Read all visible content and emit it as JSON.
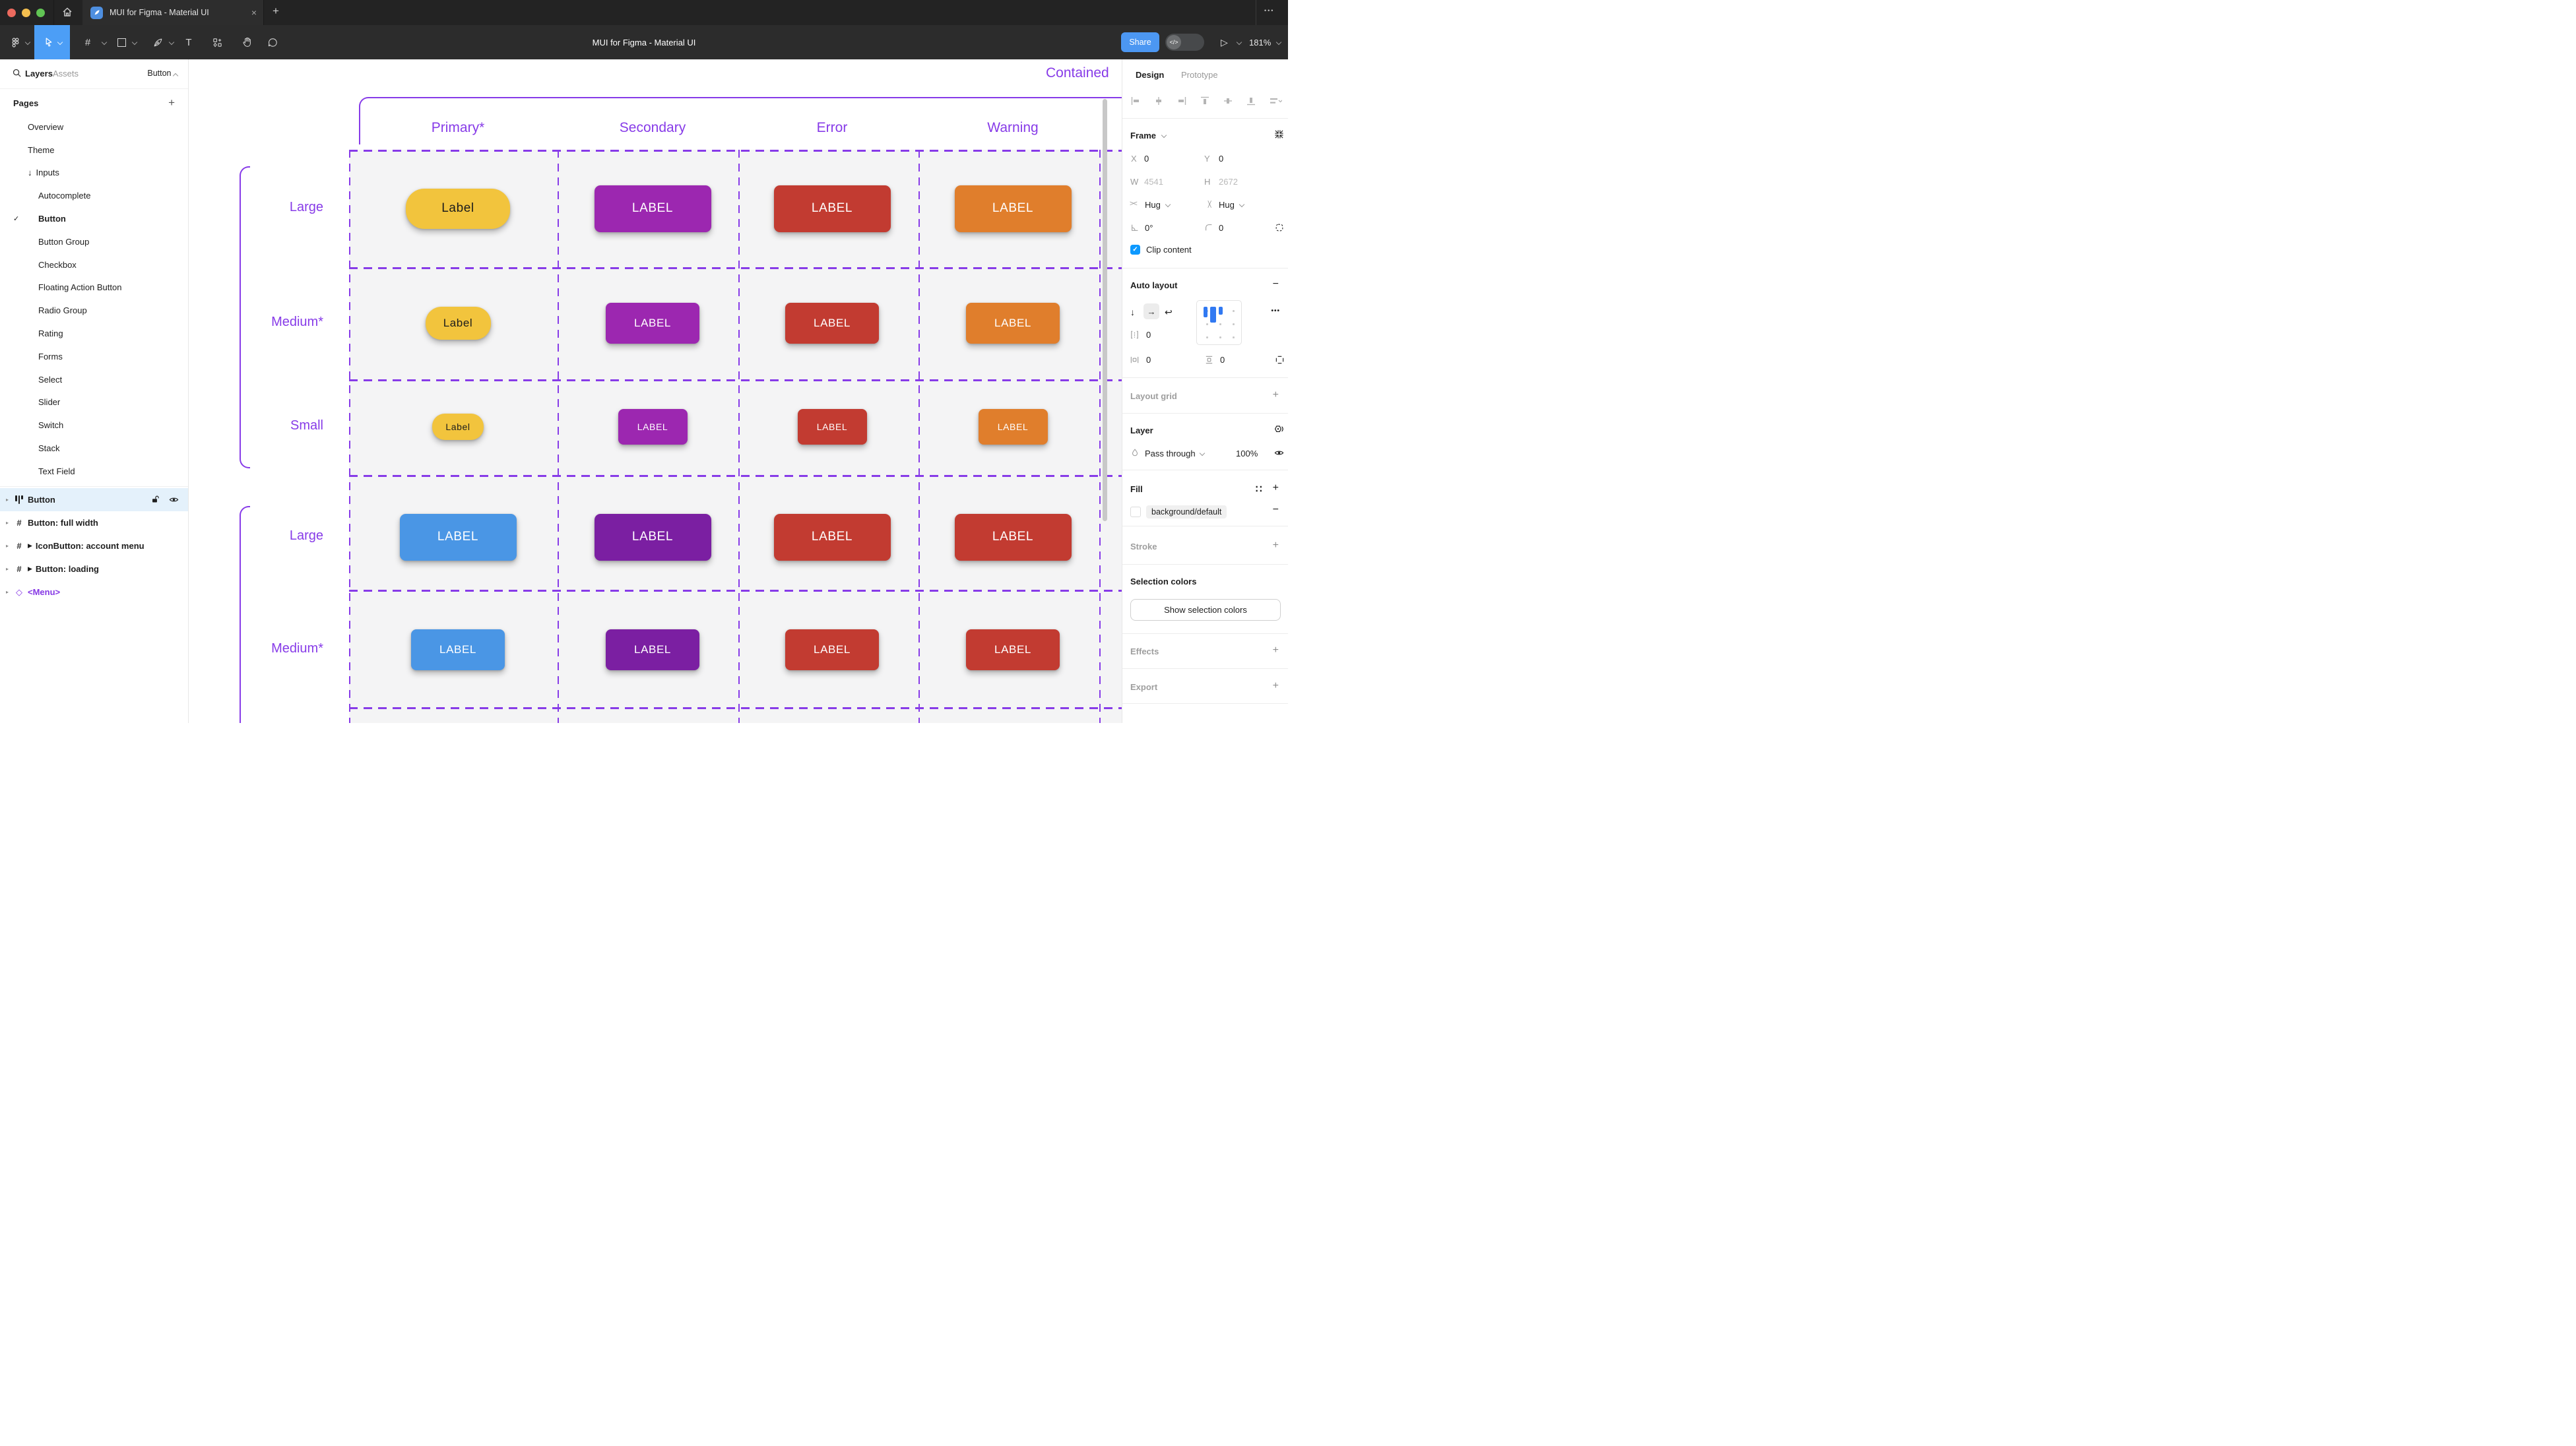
{
  "colors": {
    "figma_blue": "#4C9EF6",
    "grid_purple": "#873BE8",
    "checkbox_blue": "#0D99FF",
    "selected_row_bg": "#E4F1FB",
    "canvas_frame_bg": "#F4F4F5",
    "traffic_lights": [
      "#EC6A5E",
      "#F4BF4F",
      "#61C454"
    ]
  },
  "titlebar": {
    "tab_title": "MUI for Figma - Material UI",
    "close_label": "×",
    "new_tab_label": "+",
    "more_label": "•••"
  },
  "toolbar": {
    "document_title": "MUI for Figma - Material UI",
    "share_label": "Share",
    "dev_toggle_label": "</>",
    "present_label": "▷",
    "zoom_level": "181%",
    "frame_tool_glyph": "#",
    "text_tool_glyph": "T"
  },
  "sidebar": {
    "tab_layers": "Layers",
    "tab_assets": "Assets",
    "page_selector": "Button",
    "pages_header": "Pages",
    "add_page_label": "+",
    "pages": [
      {
        "label": "Overview",
        "indent": 0
      },
      {
        "label": "Theme",
        "indent": 0
      },
      {
        "label": "Inputs",
        "indent": 0,
        "arrow": "↓"
      },
      {
        "label": "Autocomplete",
        "indent": 1
      },
      {
        "label": "Button",
        "indent": 1,
        "checked": true,
        "active": true
      },
      {
        "label": "Button Group",
        "indent": 1
      },
      {
        "label": "Checkbox",
        "indent": 1
      },
      {
        "label": "Floating Action Button",
        "indent": 1
      },
      {
        "label": "Radio Group",
        "indent": 1
      },
      {
        "label": "Rating",
        "indent": 1
      },
      {
        "label": "Forms",
        "indent": 1
      },
      {
        "label": "Select",
        "indent": 1
      },
      {
        "label": "Slider",
        "indent": 1
      },
      {
        "label": "Switch",
        "indent": 1
      },
      {
        "label": "Stack",
        "indent": 1
      },
      {
        "label": "Text Field",
        "indent": 1
      }
    ],
    "layers": [
      {
        "label": "Button",
        "icon": "auto-layout",
        "selected": true
      },
      {
        "label": "Button: full width",
        "icon": "frame"
      },
      {
        "label": "IconButton: account menu",
        "icon": "frame",
        "play": true
      },
      {
        "label": "Button: loading",
        "icon": "frame",
        "play": true
      },
      {
        "label": "<Menu>",
        "icon": "component",
        "color": "#8638E5"
      }
    ]
  },
  "canvas": {
    "frame_title": "Contained",
    "columns": [
      "Primary*",
      "Secondary",
      "Error",
      "Warning"
    ],
    "rows": [
      {
        "label": "Large",
        "size": "lg",
        "buttons": [
          {
            "text": "Label",
            "bg": "#F2C43D",
            "fg": "#1C1C1C",
            "pill": true
          },
          {
            "text": "LABEL",
            "bg": "#9C27B0",
            "fg": "#FFFFFF"
          },
          {
            "text": "LABEL",
            "bg": "#C23B31",
            "fg": "#FFFFFF"
          },
          {
            "text": "LABEL",
            "bg": "#E07E2C",
            "fg": "#FFFFFF"
          }
        ]
      },
      {
        "label": "Medium*",
        "size": "md",
        "buttons": [
          {
            "text": "Label",
            "bg": "#F2C43D",
            "fg": "#1C1C1C",
            "pill": true
          },
          {
            "text": "LABEL",
            "bg": "#9C27B0",
            "fg": "#FFFFFF"
          },
          {
            "text": "LABEL",
            "bg": "#C23B31",
            "fg": "#FFFFFF"
          },
          {
            "text": "LABEL",
            "bg": "#E07E2C",
            "fg": "#FFFFFF"
          }
        ]
      },
      {
        "label": "Small",
        "size": "sm",
        "buttons": [
          {
            "text": "Label",
            "bg": "#F2C43D",
            "fg": "#1C1C1C",
            "pill": true
          },
          {
            "text": "LABEL",
            "bg": "#9C27B0",
            "fg": "#FFFFFF"
          },
          {
            "text": "LABEL",
            "bg": "#C23B31",
            "fg": "#FFFFFF"
          },
          {
            "text": "LABEL",
            "bg": "#E07E2C",
            "fg": "#FFFFFF"
          }
        ]
      },
      {
        "label": "Large",
        "size": "lg",
        "buttons": [
          {
            "text": "LABEL",
            "bg": "#4A96E5",
            "fg": "#FFFFFF"
          },
          {
            "text": "LABEL",
            "bg": "#7B1FA2",
            "fg": "#FFFFFF"
          },
          {
            "text": "LABEL",
            "bg": "#C23B31",
            "fg": "#FFFFFF"
          },
          {
            "text": "LABEL",
            "bg": "#C23B31",
            "fg": "#FFFFFF"
          }
        ]
      },
      {
        "label": "Medium*",
        "size": "md",
        "buttons": [
          {
            "text": "LABEL",
            "bg": "#4A96E5",
            "fg": "#FFFFFF"
          },
          {
            "text": "LABEL",
            "bg": "#7B1FA2",
            "fg": "#FFFFFF"
          },
          {
            "text": "LABEL",
            "bg": "#C23B31",
            "fg": "#FFFFFF"
          },
          {
            "text": "LABEL",
            "bg": "#C23B31",
            "fg": "#FFFFFF"
          }
        ]
      }
    ]
  },
  "inspector": {
    "tab_design": "Design",
    "tab_prototype": "Prototype",
    "frame": {
      "title": "Frame",
      "x_label": "X",
      "x": "0",
      "y_label": "Y",
      "y": "0",
      "w_label": "W",
      "w": "4541",
      "h_label": "H",
      "h": "2672",
      "hug_h": "Hug",
      "hug_v": "Hug",
      "rotation": "0°",
      "radius": "0",
      "clip_label": "Clip content"
    },
    "auto_layout": {
      "title": "Auto layout",
      "remove_label": "−",
      "more_label": "•••",
      "gap": "0",
      "padding_h": "0",
      "padding_v": "0"
    },
    "layout_grid": {
      "title": "Layout grid",
      "add_label": "+"
    },
    "layer": {
      "title": "Layer",
      "blend_mode": "Pass through",
      "opacity": "100%"
    },
    "fill": {
      "title": "Fill",
      "token": "background/default",
      "styles_label": "∷",
      "add_label": "+",
      "remove_label": "−"
    },
    "stroke": {
      "title": "Stroke",
      "add_label": "+"
    },
    "selection_colors": {
      "title": "Selection colors",
      "button_label": "Show selection colors"
    },
    "effects": {
      "title": "Effects",
      "add_label": "+"
    },
    "export": {
      "title": "Export",
      "add_label": "+"
    }
  }
}
